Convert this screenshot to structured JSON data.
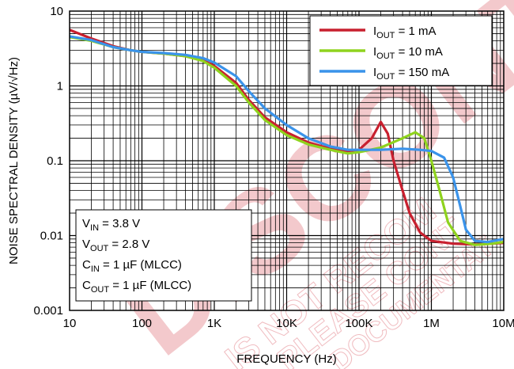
{
  "chart_data": {
    "type": "line",
    "xlabel": "FREQUENCY (Hz)",
    "ylabel": "NOISE SPECTRAL DENSITY (µV/√Hz)",
    "x_scale": "log",
    "y_scale": "log",
    "xlim": [
      10,
      10000000
    ],
    "ylim": [
      0.001,
      10
    ],
    "grid": true,
    "x_ticks": [
      {
        "value": 10,
        "label": "10"
      },
      {
        "value": 100,
        "label": "100"
      },
      {
        "value": 1000,
        "label": "1K"
      },
      {
        "value": 10000,
        "label": "10K"
      },
      {
        "value": 100000,
        "label": "100K"
      },
      {
        "value": 1000000,
        "label": "1M"
      },
      {
        "value": 10000000,
        "label": "10M"
      }
    ],
    "y_ticks": [
      {
        "value": 0.001,
        "label": "0.001"
      },
      {
        "value": 0.01,
        "label": "0.01"
      },
      {
        "value": 0.1,
        "label": "0.1"
      },
      {
        "value": 1,
        "label": "1"
      },
      {
        "value": 10,
        "label": "10"
      }
    ],
    "legend_placement": "top-right",
    "series": [
      {
        "legend_main": "I",
        "legend_sub": "OUT",
        "legend_rest": " = 1 mA",
        "color": "#c8202f",
        "points": [
          [
            10,
            5.6
          ],
          [
            20,
            4.3
          ],
          [
            40,
            3.4
          ],
          [
            70,
            3.0
          ],
          [
            100,
            2.85
          ],
          [
            200,
            2.7
          ],
          [
            400,
            2.5
          ],
          [
            700,
            2.2
          ],
          [
            1000,
            1.85
          ],
          [
            2000,
            1.1
          ],
          [
            3000,
            0.65
          ],
          [
            5000,
            0.38
          ],
          [
            10000,
            0.24
          ],
          [
            20000,
            0.175
          ],
          [
            40000,
            0.145
          ],
          [
            70000,
            0.135
          ],
          [
            100000,
            0.14
          ],
          [
            150000,
            0.2
          ],
          [
            200000,
            0.33
          ],
          [
            250000,
            0.23
          ],
          [
            300000,
            0.1
          ],
          [
            400000,
            0.04
          ],
          [
            500000,
            0.02
          ],
          [
            700000,
            0.011
          ],
          [
            1000000,
            0.0085
          ],
          [
            2000000,
            0.0078
          ],
          [
            4000000,
            0.0076
          ],
          [
            7000000,
            0.0078
          ],
          [
            10000000,
            0.008
          ]
        ]
      },
      {
        "legend_main": "I",
        "legend_sub": "OUT",
        "legend_rest": " = 10 mA",
        "color": "#8fd31e",
        "points": [
          [
            10,
            4.5
          ],
          [
            20,
            4.0
          ],
          [
            40,
            3.3
          ],
          [
            70,
            3.0
          ],
          [
            100,
            2.85
          ],
          [
            200,
            2.7
          ],
          [
            400,
            2.5
          ],
          [
            700,
            2.15
          ],
          [
            1000,
            1.75
          ],
          [
            2000,
            1.0
          ],
          [
            3000,
            0.6
          ],
          [
            5000,
            0.35
          ],
          [
            10000,
            0.22
          ],
          [
            20000,
            0.165
          ],
          [
            40000,
            0.14
          ],
          [
            70000,
            0.125
          ],
          [
            100000,
            0.13
          ],
          [
            200000,
            0.15
          ],
          [
            400000,
            0.2
          ],
          [
            600000,
            0.24
          ],
          [
            800000,
            0.2
          ],
          [
            1000000,
            0.1
          ],
          [
            1300000,
            0.04
          ],
          [
            1700000,
            0.015
          ],
          [
            2500000,
            0.0085
          ],
          [
            4000000,
            0.0075
          ],
          [
            7000000,
            0.0078
          ],
          [
            10000000,
            0.0082
          ]
        ]
      },
      {
        "legend_main": "I",
        "legend_sub": "OUT",
        "legend_rest": " = 150 mA",
        "color": "#3a93ea",
        "points": [
          [
            10,
            4.6
          ],
          [
            20,
            4.1
          ],
          [
            40,
            3.3
          ],
          [
            70,
            3.0
          ],
          [
            100,
            2.85
          ],
          [
            200,
            2.75
          ],
          [
            400,
            2.6
          ],
          [
            700,
            2.35
          ],
          [
            1000,
            2.05
          ],
          [
            2000,
            1.35
          ],
          [
            3000,
            0.85
          ],
          [
            5000,
            0.5
          ],
          [
            10000,
            0.3
          ],
          [
            20000,
            0.2
          ],
          [
            40000,
            0.155
          ],
          [
            70000,
            0.14
          ],
          [
            100000,
            0.14
          ],
          [
            200000,
            0.14
          ],
          [
            400000,
            0.145
          ],
          [
            700000,
            0.14
          ],
          [
            1000000,
            0.135
          ],
          [
            1500000,
            0.11
          ],
          [
            2000000,
            0.06
          ],
          [
            2500000,
            0.025
          ],
          [
            3000000,
            0.012
          ],
          [
            4000000,
            0.0085
          ],
          [
            6000000,
            0.0082
          ],
          [
            10000000,
            0.009
          ]
        ]
      }
    ],
    "conditions": [
      {
        "main": "V",
        "sub": "IN",
        "rest": " = 3.8 V"
      },
      {
        "main": "V",
        "sub": "OUT",
        "rest": " = 2.8 V"
      },
      {
        "main": "C",
        "sub": "IN",
        "rest": " = 1 µF (MLCC)"
      },
      {
        "main": "C",
        "sub": "OUT",
        "rest": " = 1 µF (MLCC)"
      }
    ],
    "watermark": {
      "large": "DISCONT",
      "lines": [
        "IS NOT RECOM",
        "PLEASE CONT",
        "DOCUMENTAT"
      ]
    }
  }
}
